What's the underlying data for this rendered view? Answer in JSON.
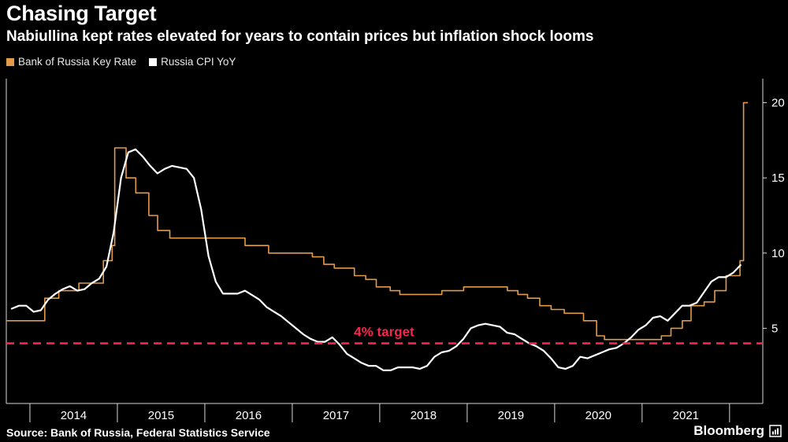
{
  "header": {
    "title": "Chasing Target",
    "subtitle": "Nabiullina kept rates elevated for years to contain prices but inflation shock looms"
  },
  "footer": {
    "source": "Source: Bank of Russia, Federal Statistics Service",
    "brand": "Bloomberg"
  },
  "chart_data": {
    "type": "line",
    "title": "Chasing Target",
    "subtitle": "Nabiullina kept rates elevated for years to contain prices but inflation shock looms",
    "background": "#000000",
    "frame_color": "#d8d8d8",
    "grid": false,
    "legend_position": "top-left",
    "x_axis": {
      "range": [
        2013.73,
        2022.38
      ],
      "ticks": [
        2014,
        2015,
        2016,
        2017,
        2018,
        2019,
        2020,
        2021,
        2022
      ],
      "labels": [
        "2014",
        "2015",
        "2016",
        "2017",
        "2018",
        "2019",
        "2020",
        "2021"
      ]
    },
    "y_axis": {
      "range": [
        0,
        21.6
      ],
      "ticks": [
        5,
        10,
        15,
        20
      ],
      "side": "right"
    },
    "target_line": {
      "value": 4,
      "label": "4% target",
      "color": "#f5264f",
      "label_x": 2018.05,
      "style": "dashed"
    },
    "series": [
      {
        "name": "Bank of Russia Key Rate",
        "color": "#e39a49",
        "style": "step",
        "width": 1.6,
        "points": [
          [
            2013.73,
            5.5
          ],
          [
            2014.17,
            7
          ],
          [
            2014.33,
            7.5
          ],
          [
            2014.56,
            8
          ],
          [
            2014.84,
            9.5
          ],
          [
            2014.94,
            10.5
          ],
          [
            2014.97,
            17
          ],
          [
            2015.1,
            15
          ],
          [
            2015.21,
            14
          ],
          [
            2015.36,
            12.5
          ],
          [
            2015.46,
            11.5
          ],
          [
            2015.6,
            11
          ],
          [
            2016.46,
            10.5
          ],
          [
            2016.73,
            10
          ],
          [
            2017.23,
            9.75
          ],
          [
            2017.36,
            9.25
          ],
          [
            2017.48,
            9
          ],
          [
            2017.71,
            8.5
          ],
          [
            2017.84,
            8.25
          ],
          [
            2017.96,
            7.75
          ],
          [
            2018.12,
            7.5
          ],
          [
            2018.23,
            7.25
          ],
          [
            2018.71,
            7.5
          ],
          [
            2018.96,
            7.75
          ],
          [
            2019.46,
            7.5
          ],
          [
            2019.58,
            7.25
          ],
          [
            2019.69,
            7
          ],
          [
            2019.83,
            6.5
          ],
          [
            2019.96,
            6.25
          ],
          [
            2020.11,
            6
          ],
          [
            2020.33,
            5.5
          ],
          [
            2020.48,
            4.5
          ],
          [
            2020.57,
            4.25
          ],
          [
            2021.22,
            4.5
          ],
          [
            2021.33,
            5
          ],
          [
            2021.46,
            5.5
          ],
          [
            2021.56,
            6.5
          ],
          [
            2021.71,
            6.75
          ],
          [
            2021.83,
            7.5
          ],
          [
            2021.96,
            8.5
          ],
          [
            2022.12,
            9.5
          ],
          [
            2022.16,
            20
          ],
          [
            2022.21,
            20
          ]
        ]
      },
      {
        "name": "Russia CPI YoY",
        "color": "#ffffff",
        "style": "line",
        "width": 2.2,
        "points": [
          [
            2013.792,
            6.3
          ],
          [
            2013.875,
            6.5
          ],
          [
            2013.958,
            6.5
          ],
          [
            2014.042,
            6.1
          ],
          [
            2014.125,
            6.2
          ],
          [
            2014.208,
            6.9
          ],
          [
            2014.292,
            7.3
          ],
          [
            2014.375,
            7.6
          ],
          [
            2014.458,
            7.8
          ],
          [
            2014.542,
            7.5
          ],
          [
            2014.625,
            7.6
          ],
          [
            2014.708,
            8.0
          ],
          [
            2014.792,
            8.3
          ],
          [
            2014.875,
            9.1
          ],
          [
            2014.958,
            11.4
          ],
          [
            2015.042,
            15.0
          ],
          [
            2015.125,
            16.7
          ],
          [
            2015.208,
            16.9
          ],
          [
            2015.292,
            16.4
          ],
          [
            2015.375,
            15.8
          ],
          [
            2015.458,
            15.3
          ],
          [
            2015.542,
            15.6
          ],
          [
            2015.625,
            15.8
          ],
          [
            2015.708,
            15.7
          ],
          [
            2015.792,
            15.6
          ],
          [
            2015.875,
            15.0
          ],
          [
            2015.958,
            12.9
          ],
          [
            2016.042,
            9.8
          ],
          [
            2016.125,
            8.1
          ],
          [
            2016.208,
            7.3
          ],
          [
            2016.292,
            7.3
          ],
          [
            2016.375,
            7.3
          ],
          [
            2016.458,
            7.5
          ],
          [
            2016.542,
            7.2
          ],
          [
            2016.625,
            6.9
          ],
          [
            2016.708,
            6.4
          ],
          [
            2016.792,
            6.1
          ],
          [
            2016.875,
            5.8
          ],
          [
            2016.958,
            5.4
          ],
          [
            2017.042,
            5.0
          ],
          [
            2017.125,
            4.6
          ],
          [
            2017.208,
            4.3
          ],
          [
            2017.292,
            4.1
          ],
          [
            2017.375,
            4.1
          ],
          [
            2017.458,
            4.4
          ],
          [
            2017.542,
            3.9
          ],
          [
            2017.625,
            3.3
          ],
          [
            2017.708,
            3.0
          ],
          [
            2017.792,
            2.7
          ],
          [
            2017.875,
            2.5
          ],
          [
            2017.958,
            2.5
          ],
          [
            2018.042,
            2.2
          ],
          [
            2018.125,
            2.2
          ],
          [
            2018.208,
            2.4
          ],
          [
            2018.292,
            2.4
          ],
          [
            2018.375,
            2.4
          ],
          [
            2018.458,
            2.3
          ],
          [
            2018.542,
            2.5
          ],
          [
            2018.625,
            3.1
          ],
          [
            2018.708,
            3.4
          ],
          [
            2018.792,
            3.5
          ],
          [
            2018.875,
            3.8
          ],
          [
            2018.958,
            4.3
          ],
          [
            2019.042,
            5.0
          ],
          [
            2019.125,
            5.2
          ],
          [
            2019.208,
            5.3
          ],
          [
            2019.292,
            5.2
          ],
          [
            2019.375,
            5.1
          ],
          [
            2019.458,
            4.7
          ],
          [
            2019.542,
            4.6
          ],
          [
            2019.625,
            4.3
          ],
          [
            2019.708,
            4.0
          ],
          [
            2019.792,
            3.8
          ],
          [
            2019.875,
            3.5
          ],
          [
            2019.958,
            3.0
          ],
          [
            2020.042,
            2.4
          ],
          [
            2020.125,
            2.3
          ],
          [
            2020.208,
            2.5
          ],
          [
            2020.292,
            3.1
          ],
          [
            2020.375,
            3.0
          ],
          [
            2020.458,
            3.2
          ],
          [
            2020.542,
            3.4
          ],
          [
            2020.625,
            3.6
          ],
          [
            2020.708,
            3.7
          ],
          [
            2020.792,
            4.0
          ],
          [
            2020.875,
            4.4
          ],
          [
            2020.958,
            4.9
          ],
          [
            2021.042,
            5.2
          ],
          [
            2021.125,
            5.7
          ],
          [
            2021.208,
            5.8
          ],
          [
            2021.292,
            5.5
          ],
          [
            2021.375,
            6.0
          ],
          [
            2021.458,
            6.5
          ],
          [
            2021.542,
            6.5
          ],
          [
            2021.625,
            6.7
          ],
          [
            2021.708,
            7.4
          ],
          [
            2021.792,
            8.1
          ],
          [
            2021.875,
            8.4
          ],
          [
            2021.958,
            8.4
          ],
          [
            2022.042,
            8.7
          ],
          [
            2022.125,
            9.2
          ]
        ]
      }
    ]
  }
}
